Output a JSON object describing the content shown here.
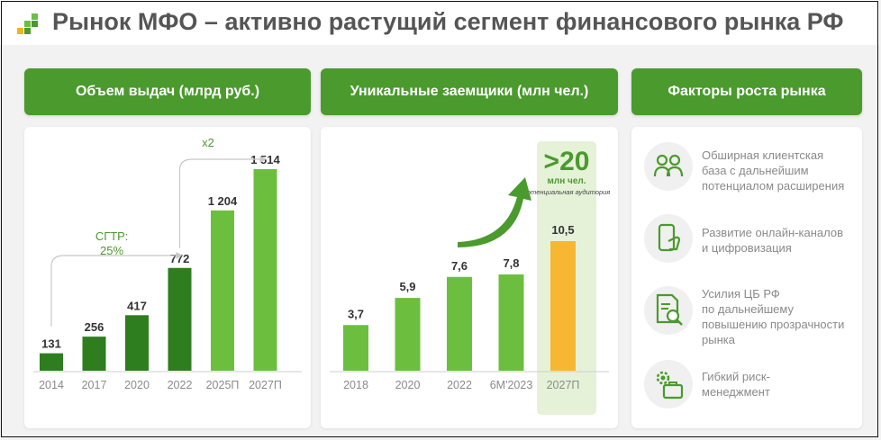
{
  "header": {
    "title": "Рынок МФО – активно растущий сегмент финансового рынка РФ"
  },
  "panels": {
    "volume": {
      "title": "Объем выдач (млрд руб.)"
    },
    "borrowers": {
      "title": "Уникальные заемщики (млн чел.)"
    },
    "factors": {
      "title": "Факторы роста рынка"
    }
  },
  "chart_data": [
    {
      "type": "bar",
      "categories": [
        "2014",
        "2017",
        "2020",
        "2022",
        "2025П",
        "2027П"
      ],
      "values": [
        131,
        256,
        417,
        772,
        1204,
        1514
      ],
      "value_labels": [
        "131",
        "256",
        "417",
        "772",
        "1 204",
        "1 514"
      ],
      "colors": [
        "#2e7d1e",
        "#2e7d1e",
        "#2e7d1e",
        "#2e7d1e",
        "#6cbf3e",
        "#6cbf3e"
      ],
      "annotations": {
        "cagr_line1": "СГТР:",
        "cagr_line2": "25%",
        "growth": "x2"
      }
    },
    {
      "type": "bar",
      "categories": [
        "2018",
        "2020",
        "2022",
        "6М'2023",
        "2027П"
      ],
      "values": [
        3.7,
        5.9,
        7.6,
        7.8,
        10.5
      ],
      "value_labels": [
        "3,7",
        "5,9",
        "7,6",
        "7,8",
        "10,5"
      ],
      "colors": [
        "#6cbf3e",
        "#6cbf3e",
        "#6cbf3e",
        "#6cbf3e",
        "#f7b733"
      ],
      "highlight": {
        "big": ">20",
        "unit": "млн чел.",
        "note": "потенциальная аудитория"
      }
    }
  ],
  "factors": [
    {
      "icon": "people-icon",
      "text": "Обширная клиентская\n база с дальнейшим\nпотенциалом расширения"
    },
    {
      "icon": "phone-hand-icon",
      "text": "Развитие онлайн-каналов\nи цифровизация"
    },
    {
      "icon": "document-search-icon",
      "text": "Усилия ЦБ РФ\nпо дальнейшему\nповышению прозрачности\nрынка"
    },
    {
      "icon": "gear-briefcase-icon",
      "text": "Гибкий риск-\nменеджмент"
    }
  ]
}
